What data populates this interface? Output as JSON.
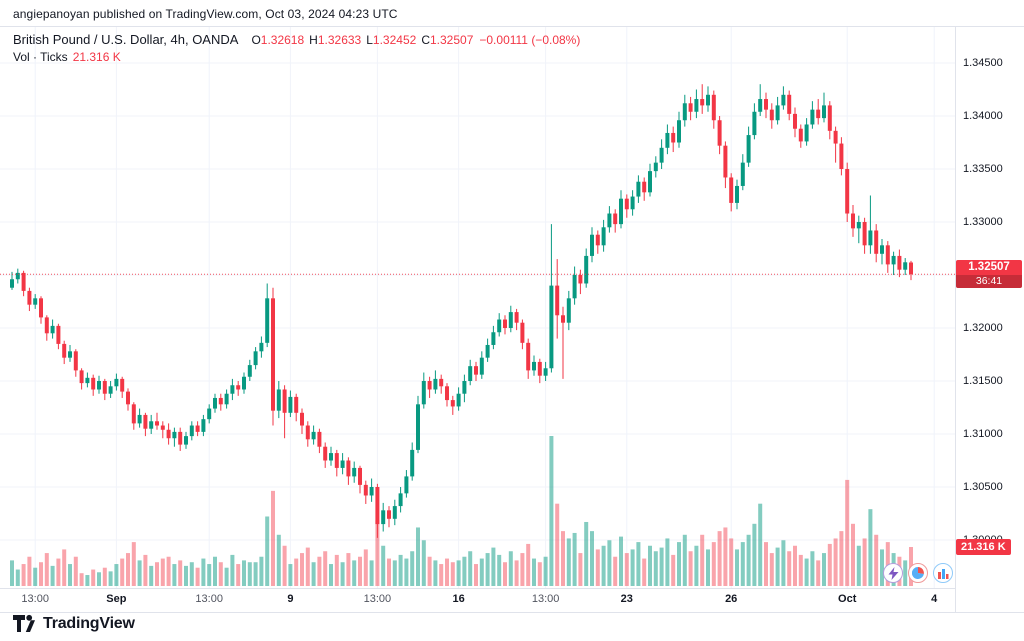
{
  "attribution": {
    "text": "angiepanoyan published on TradingView.com, Oct 03, 2024 04:23 UTC"
  },
  "header": {
    "symbol_title": "British Pound / U.S. Dollar, 4h, OANDA",
    "ohlc": {
      "o_label": "O",
      "o": "1.32618",
      "h_label": "H",
      "h": "1.32633",
      "l_label": "L",
      "l": "1.32452",
      "c_label": "C",
      "c": "1.32507",
      "change": "−0.00111 (−0.08%)"
    },
    "volume_label": "Vol · Ticks",
    "volume_value": "21.316 K"
  },
  "price_axis": {
    "current_price": "1.32507",
    "countdown": "36:41",
    "current_volume": "21.316 K"
  },
  "footer": {
    "brand": "TradingView"
  },
  "chart_data": {
    "type": "candlestick",
    "title": "British Pound / U.S. Dollar",
    "exchange": "OANDA",
    "interval": "4h",
    "volume_series": "Vol · Ticks",
    "last_close": 1.32507,
    "y_axis": {
      "ticks": [
        "1.34500",
        "1.34000",
        "1.33500",
        "1.33000",
        "1.32500",
        "1.32000",
        "1.31500",
        "1.31000",
        "1.30500",
        "1.30000"
      ]
    },
    "x_labels": [
      {
        "i": 4,
        "t": "13:00",
        "major": false
      },
      {
        "i": 18,
        "t": "Sep",
        "major": true
      },
      {
        "i": 34,
        "t": "13:00",
        "major": false
      },
      {
        "i": 48,
        "t": "9",
        "major": true
      },
      {
        "i": 63,
        "t": "13:00",
        "major": false
      },
      {
        "i": 77,
        "t": "16",
        "major": true
      },
      {
        "i": 92,
        "t": "13:00",
        "major": false
      },
      {
        "i": 106,
        "t": "23",
        "major": true
      },
      {
        "i": 124,
        "t": "26",
        "major": true
      },
      {
        "i": 144,
        "t": "Oct",
        "major": true
      },
      {
        "i": 159,
        "t": "4",
        "major": true
      }
    ],
    "colors": {
      "up": "#089981",
      "down": "#f23645",
      "vol_up": "rgba(8,153,129,0.5)",
      "vol_down": "rgba(242,54,69,0.45)",
      "grid": "#f0f3fa",
      "border": "#e0e3eb",
      "price_line": "#f23645"
    },
    "candles": [
      [
        1.3238,
        1.3253,
        1.3236,
        1.3246,
        14000
      ],
      [
        1.3246,
        1.3256,
        1.3242,
        1.3252,
        9000
      ],
      [
        1.3252,
        1.3254,
        1.323,
        1.3235,
        12000
      ],
      [
        1.3235,
        1.3238,
        1.3216,
        1.3222,
        16000
      ],
      [
        1.3222,
        1.3232,
        1.3218,
        1.3228,
        10000
      ],
      [
        1.3228,
        1.323,
        1.3204,
        1.321,
        13000
      ],
      [
        1.321,
        1.3212,
        1.3188,
        1.3195,
        18000
      ],
      [
        1.3195,
        1.3208,
        1.319,
        1.3202,
        11000
      ],
      [
        1.3202,
        1.3204,
        1.318,
        1.3185,
        15000
      ],
      [
        1.3185,
        1.3188,
        1.3166,
        1.3172,
        20000
      ],
      [
        1.3172,
        1.3184,
        1.3168,
        1.3178,
        12000
      ],
      [
        1.3178,
        1.318,
        1.3154,
        1.316,
        16000
      ],
      [
        1.316,
        1.3162,
        1.3142,
        1.3148,
        7000
      ],
      [
        1.3148,
        1.3158,
        1.3144,
        1.3153,
        6000
      ],
      [
        1.3153,
        1.3156,
        1.3136,
        1.3142,
        9000
      ],
      [
        1.3142,
        1.3155,
        1.3138,
        1.315,
        7500
      ],
      [
        1.315,
        1.3152,
        1.3132,
        1.3138,
        10000
      ],
      [
        1.3138,
        1.315,
        1.3134,
        1.3145,
        8000
      ],
      [
        1.3145,
        1.3157,
        1.3141,
        1.3152,
        12000
      ],
      [
        1.3152,
        1.3154,
        1.3134,
        1.314,
        15000
      ],
      [
        1.314,
        1.3143,
        1.3122,
        1.3128,
        18000
      ],
      [
        1.3128,
        1.313,
        1.3104,
        1.311,
        24000
      ],
      [
        1.311,
        1.3124,
        1.3106,
        1.3118,
        14000
      ],
      [
        1.3118,
        1.312,
        1.3098,
        1.3105,
        17000
      ],
      [
        1.3105,
        1.3118,
        1.31,
        1.3112,
        11000
      ],
      [
        1.3112,
        1.312,
        1.3104,
        1.3108,
        13000
      ],
      [
        1.3108,
        1.3112,
        1.3096,
        1.3104,
        15000
      ],
      [
        1.3104,
        1.311,
        1.309,
        1.3096,
        16000
      ],
      [
        1.3096,
        1.3106,
        1.3088,
        1.3102,
        12000
      ],
      [
        1.3102,
        1.3106,
        1.3084,
        1.309,
        14000
      ],
      [
        1.309,
        1.3102,
        1.3086,
        1.3098,
        11000
      ],
      [
        1.3098,
        1.3112,
        1.3094,
        1.3108,
        13000
      ],
      [
        1.3108,
        1.3112,
        1.3098,
        1.3102,
        10000
      ],
      [
        1.3102,
        1.3118,
        1.3098,
        1.3114,
        15000
      ],
      [
        1.3114,
        1.3128,
        1.311,
        1.3124,
        12000
      ],
      [
        1.3124,
        1.3138,
        1.312,
        1.3134,
        16000
      ],
      [
        1.3134,
        1.3138,
        1.3122,
        1.3128,
        13000
      ],
      [
        1.3128,
        1.3142,
        1.3124,
        1.3138,
        10000
      ],
      [
        1.3138,
        1.3152,
        1.3132,
        1.3146,
        17000
      ],
      [
        1.3146,
        1.315,
        1.3136,
        1.3142,
        12000
      ],
      [
        1.3142,
        1.3158,
        1.3138,
        1.3154,
        14000
      ],
      [
        1.3154,
        1.317,
        1.315,
        1.3165,
        13000
      ],
      [
        1.3165,
        1.3182,
        1.3161,
        1.3178,
        13000
      ],
      [
        1.3178,
        1.3192,
        1.3172,
        1.3186,
        16000
      ],
      [
        1.3186,
        1.3242,
        1.3182,
        1.3228,
        38000
      ],
      [
        1.3228,
        1.3238,
        1.3108,
        1.3122,
        52000
      ],
      [
        1.3122,
        1.315,
        1.3115,
        1.3142,
        28000
      ],
      [
        1.3142,
        1.3146,
        1.3096,
        1.312,
        22000
      ],
      [
        1.312,
        1.3141,
        1.3116,
        1.3135,
        12000
      ],
      [
        1.3135,
        1.3138,
        1.3112,
        1.312,
        15000
      ],
      [
        1.312,
        1.3124,
        1.31,
        1.3108,
        18000
      ],
      [
        1.3108,
        1.3112,
        1.3088,
        1.3095,
        21000
      ],
      [
        1.3095,
        1.3108,
        1.309,
        1.3102,
        13000
      ],
      [
        1.3102,
        1.3105,
        1.3082,
        1.3088,
        16000
      ],
      [
        1.3088,
        1.3092,
        1.3068,
        1.3075,
        19000
      ],
      [
        1.3075,
        1.3088,
        1.307,
        1.3082,
        12000
      ],
      [
        1.3082,
        1.3085,
        1.306,
        1.3068,
        17000
      ],
      [
        1.3068,
        1.3082,
        1.3062,
        1.3075,
        13000
      ],
      [
        1.3075,
        1.3078,
        1.3052,
        1.306,
        18000
      ],
      [
        1.306,
        1.3074,
        1.3054,
        1.3068,
        14000
      ],
      [
        1.3068,
        1.307,
        1.3044,
        1.3052,
        16000
      ],
      [
        1.3052,
        1.3056,
        1.3034,
        1.3042,
        20000
      ],
      [
        1.3042,
        1.3058,
        1.3036,
        1.305,
        14000
      ],
      [
        1.305,
        1.3053,
        1.3002,
        1.3015,
        36000
      ],
      [
        1.3015,
        1.3035,
        1.3008,
        1.3028,
        22000
      ],
      [
        1.3028,
        1.3032,
        1.3012,
        1.302,
        15000
      ],
      [
        1.302,
        1.3038,
        1.3014,
        1.3032,
        14000
      ],
      [
        1.3032,
        1.305,
        1.3026,
        1.3044,
        17000
      ],
      [
        1.3044,
        1.3066,
        1.304,
        1.306,
        15000
      ],
      [
        1.306,
        1.3092,
        1.3056,
        1.3085,
        19000
      ],
      [
        1.3085,
        1.3136,
        1.3082,
        1.3128,
        32000
      ],
      [
        1.3128,
        1.3158,
        1.3124,
        1.315,
        25000
      ],
      [
        1.315,
        1.3154,
        1.3134,
        1.3142,
        16000
      ],
      [
        1.3142,
        1.316,
        1.3138,
        1.3152,
        14000
      ],
      [
        1.3152,
        1.3156,
        1.3138,
        1.3145,
        12000
      ],
      [
        1.3145,
        1.3148,
        1.3126,
        1.3132,
        15000
      ],
      [
        1.3132,
        1.3136,
        1.3118,
        1.3126,
        13000
      ],
      [
        1.3126,
        1.3144,
        1.3122,
        1.3138,
        14000
      ],
      [
        1.3138,
        1.3156,
        1.313,
        1.315,
        16000
      ],
      [
        1.315,
        1.317,
        1.3146,
        1.3164,
        19000
      ],
      [
        1.3164,
        1.3168,
        1.315,
        1.3156,
        12000
      ],
      [
        1.3156,
        1.3178,
        1.3152,
        1.3172,
        15000
      ],
      [
        1.3172,
        1.319,
        1.3168,
        1.3184,
        18000
      ],
      [
        1.3184,
        1.3202,
        1.318,
        1.3196,
        21000
      ],
      [
        1.3196,
        1.3214,
        1.3192,
        1.3208,
        17000
      ],
      [
        1.3208,
        1.3212,
        1.3194,
        1.32,
        13000
      ],
      [
        1.32,
        1.3221,
        1.3196,
        1.3215,
        19000
      ],
      [
        1.3215,
        1.3218,
        1.3198,
        1.3205,
        14000
      ],
      [
        1.3205,
        1.3208,
        1.318,
        1.3186,
        18000
      ],
      [
        1.3186,
        1.319,
        1.3152,
        1.316,
        23000
      ],
      [
        1.316,
        1.3174,
        1.3155,
        1.3168,
        15000
      ],
      [
        1.3168,
        1.3171,
        1.3148,
        1.3155,
        13000
      ],
      [
        1.3155,
        1.3168,
        1.315,
        1.3162,
        16000
      ],
      [
        1.3162,
        1.3298,
        1.3158,
        1.324,
        82000
      ],
      [
        1.324,
        1.3265,
        1.319,
        1.3212,
        45000
      ],
      [
        1.3212,
        1.322,
        1.3152,
        1.3205,
        30000
      ],
      [
        1.3205,
        1.3235,
        1.3198,
        1.3228,
        26000
      ],
      [
        1.3228,
        1.3258,
        1.3222,
        1.325,
        29000
      ],
      [
        1.325,
        1.3255,
        1.3232,
        1.3242,
        18000
      ],
      [
        1.3242,
        1.3275,
        1.3238,
        1.3268,
        35000
      ],
      [
        1.3268,
        1.3295,
        1.3262,
        1.3288,
        30000
      ],
      [
        1.3288,
        1.3292,
        1.327,
        1.3278,
        20000
      ],
      [
        1.3278,
        1.3302,
        1.3272,
        1.3295,
        22000
      ],
      [
        1.3295,
        1.3315,
        1.329,
        1.3308,
        25000
      ],
      [
        1.3308,
        1.3312,
        1.329,
        1.3298,
        16000
      ],
      [
        1.3298,
        1.333,
        1.3294,
        1.3322,
        27000
      ],
      [
        1.3322,
        1.3326,
        1.3304,
        1.3312,
        18000
      ],
      [
        1.3312,
        1.333,
        1.3306,
        1.3324,
        20000
      ],
      [
        1.3324,
        1.3344,
        1.3318,
        1.3338,
        24000
      ],
      [
        1.3338,
        1.3342,
        1.332,
        1.3328,
        15000
      ],
      [
        1.3328,
        1.3355,
        1.3324,
        1.3348,
        22000
      ],
      [
        1.3348,
        1.3362,
        1.3342,
        1.3356,
        19000
      ],
      [
        1.3356,
        1.3378,
        1.335,
        1.337,
        21000
      ],
      [
        1.337,
        1.3392,
        1.3364,
        1.3384,
        26000
      ],
      [
        1.3384,
        1.339,
        1.3366,
        1.3375,
        17000
      ],
      [
        1.3375,
        1.3404,
        1.337,
        1.3396,
        24000
      ],
      [
        1.3396,
        1.342,
        1.339,
        1.3412,
        28000
      ],
      [
        1.3412,
        1.3418,
        1.3396,
        1.3404,
        19000
      ],
      [
        1.3404,
        1.3425,
        1.3398,
        1.3416,
        22000
      ],
      [
        1.3416,
        1.343,
        1.3402,
        1.341,
        28000
      ],
      [
        1.341,
        1.3428,
        1.3404,
        1.342,
        20000
      ],
      [
        1.342,
        1.3424,
        1.3388,
        1.3396,
        24000
      ],
      [
        1.3396,
        1.34,
        1.3364,
        1.3372,
        30000
      ],
      [
        1.3372,
        1.3376,
        1.3332,
        1.3342,
        32000
      ],
      [
        1.3342,
        1.3346,
        1.331,
        1.3318,
        26000
      ],
      [
        1.3318,
        1.334,
        1.3312,
        1.3334,
        20000
      ],
      [
        1.3334,
        1.3364,
        1.333,
        1.3356,
        24000
      ],
      [
        1.3356,
        1.339,
        1.3352,
        1.3382,
        28000
      ],
      [
        1.3382,
        1.3412,
        1.3378,
        1.3404,
        34000
      ],
      [
        1.3404,
        1.343,
        1.34,
        1.3416,
        45000
      ],
      [
        1.3416,
        1.3422,
        1.3398,
        1.3406,
        24000
      ],
      [
        1.3406,
        1.3412,
        1.3388,
        1.3396,
        18000
      ],
      [
        1.3396,
        1.3418,
        1.3392,
        1.341,
        21000
      ],
      [
        1.341,
        1.3428,
        1.3406,
        1.342,
        25000
      ],
      [
        1.342,
        1.3424,
        1.3396,
        1.3402,
        19000
      ],
      [
        1.3402,
        1.3408,
        1.338,
        1.3388,
        22000
      ],
      [
        1.3388,
        1.3392,
        1.337,
        1.3376,
        17000
      ],
      [
        1.3376,
        1.3398,
        1.3372,
        1.3392,
        15000
      ],
      [
        1.3392,
        1.3414,
        1.3388,
        1.3406,
        19000
      ],
      [
        1.3406,
        1.3416,
        1.3392,
        1.3398,
        14000
      ],
      [
        1.3398,
        1.3422,
        1.3394,
        1.341,
        18000
      ],
      [
        1.341,
        1.3414,
        1.3378,
        1.3386,
        23000
      ],
      [
        1.3386,
        1.339,
        1.3356,
        1.3374,
        26000
      ],
      [
        1.3374,
        1.338,
        1.3344,
        1.335,
        30000
      ],
      [
        1.335,
        1.3356,
        1.33,
        1.3308,
        58000
      ],
      [
        1.3308,
        1.3316,
        1.3286,
        1.3294,
        34000
      ],
      [
        1.3294,
        1.3306,
        1.328,
        1.33,
        22000
      ],
      [
        1.33,
        1.3304,
        1.327,
        1.3278,
        26000
      ],
      [
        1.3278,
        1.3325,
        1.327,
        1.3292,
        42000
      ],
      [
        1.3292,
        1.3298,
        1.3262,
        1.327,
        28000
      ],
      [
        1.327,
        1.3284,
        1.326,
        1.3278,
        20000
      ],
      [
        1.3278,
        1.3282,
        1.3252,
        1.326,
        24000
      ],
      [
        1.326,
        1.3272,
        1.325,
        1.3268,
        18000
      ],
      [
        1.3268,
        1.3274,
        1.3248,
        1.3255,
        16000
      ],
      [
        1.3255,
        1.3266,
        1.325,
        1.3262,
        14000
      ],
      [
        1.32618,
        1.32633,
        1.32452,
        1.32507,
        21316
      ]
    ]
  }
}
